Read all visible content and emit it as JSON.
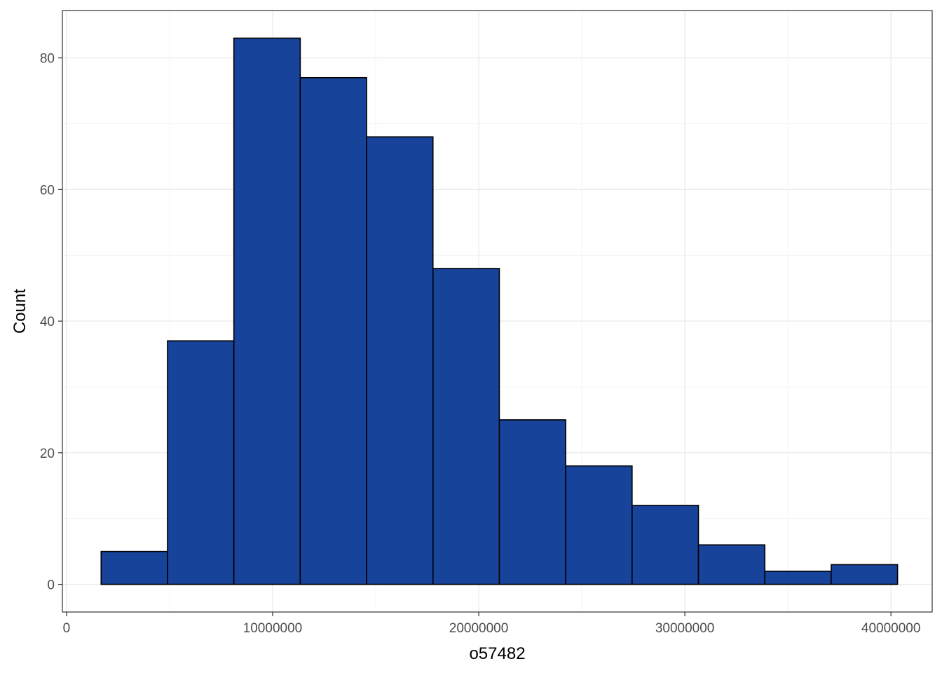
{
  "chart_data": {
    "type": "bar",
    "subtype": "histogram",
    "xlabel": "o57482",
    "ylabel": "Count",
    "x_ticks": [
      0,
      10000000,
      20000000,
      30000000,
      40000000
    ],
    "x_tick_labels": [
      "0",
      "10000000",
      "20000000",
      "30000000",
      "40000000"
    ],
    "y_ticks": [
      0,
      20,
      40,
      60,
      80
    ],
    "y_tick_labels": [
      "0",
      "20",
      "40",
      "60",
      "80"
    ],
    "xlim": [
      -200000,
      42000000
    ],
    "ylim": [
      -4.2,
      87.2
    ],
    "grid": true,
    "bins": [
      {
        "x0": 1680000,
        "x1": 4900000,
        "count": 5
      },
      {
        "x0": 4900000,
        "x1": 8120000,
        "count": 37
      },
      {
        "x0": 8120000,
        "x1": 11340000,
        "count": 83
      },
      {
        "x0": 11340000,
        "x1": 14560000,
        "count": 77
      },
      {
        "x0": 14560000,
        "x1": 17780000,
        "count": 68
      },
      {
        "x0": 17780000,
        "x1": 21000000,
        "count": 48
      },
      {
        "x0": 21000000,
        "x1": 24220000,
        "count": 25
      },
      {
        "x0": 24220000,
        "x1": 27440000,
        "count": 18
      },
      {
        "x0": 27440000,
        "x1": 30660000,
        "count": 12
      },
      {
        "x0": 30660000,
        "x1": 33880000,
        "count": 6
      },
      {
        "x0": 33880000,
        "x1": 37100000,
        "count": 2
      },
      {
        "x0": 37100000,
        "x1": 40320000,
        "count": 3
      }
    ],
    "colors": {
      "bar_fill": "#17439a",
      "bar_stroke": "#000000",
      "grid_major": "#ebebeb",
      "grid_minor": "#f4f4f4",
      "panel_border": "#333333",
      "tick_text": "#4d4d4d"
    }
  }
}
